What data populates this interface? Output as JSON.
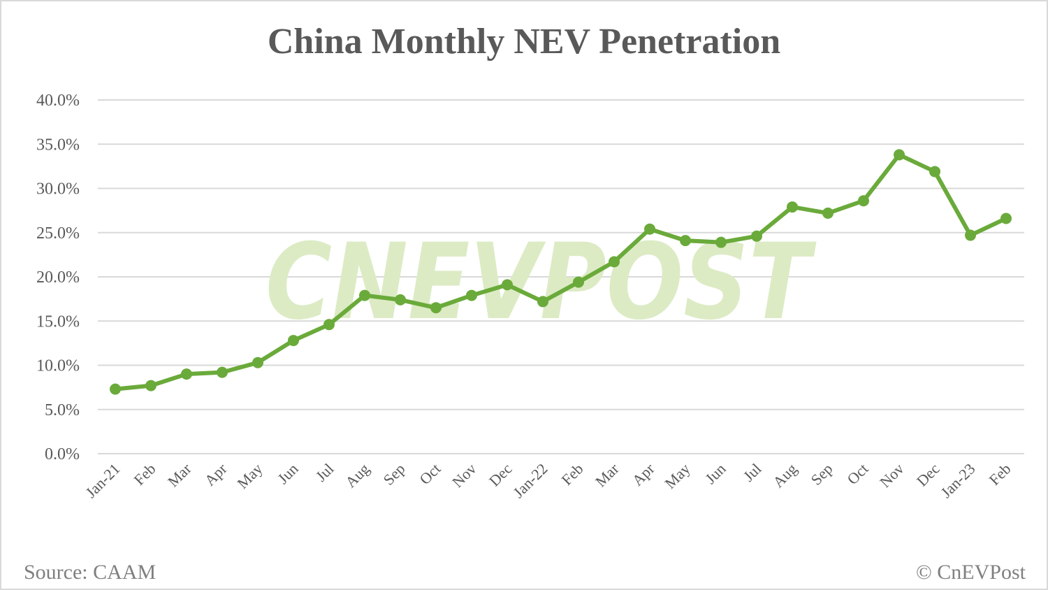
{
  "title": "China Monthly NEV Penetration",
  "footer": {
    "source": "Source: CAAM",
    "credit": "© CnEVPost"
  },
  "watermark": "CNEVPOST",
  "colors": {
    "line": "#6aaa3a",
    "watermark": "#dcebc4",
    "grid": "#d9d9d9",
    "text": "#595959"
  },
  "chart_data": {
    "type": "line",
    "title": "China Monthly NEV Penetration",
    "xlabel": "",
    "ylabel": "",
    "ylim": [
      0,
      40
    ],
    "yticks": [
      "0.0%",
      "5.0%",
      "10.0%",
      "15.0%",
      "20.0%",
      "25.0%",
      "30.0%",
      "35.0%",
      "40.0%"
    ],
    "grid": true,
    "legend": "none",
    "categories": [
      "Jan-21",
      "Feb",
      "Mar",
      "Apr",
      "May",
      "Jun",
      "Jul",
      "Aug",
      "Sep",
      "Oct",
      "Nov",
      "Dec",
      "Jan-22",
      "Feb",
      "Mar",
      "Apr",
      "May",
      "Jun",
      "Jul",
      "Aug",
      "Sep",
      "Oct",
      "Nov",
      "Dec",
      "Jan-23",
      "Feb"
    ],
    "series": [
      {
        "name": "NEV Penetration",
        "values": [
          7.3,
          7.7,
          9.0,
          9.2,
          10.3,
          12.8,
          14.6,
          17.9,
          17.4,
          16.5,
          17.9,
          19.1,
          17.2,
          19.4,
          21.7,
          25.4,
          24.1,
          23.9,
          24.6,
          27.9,
          27.2,
          28.6,
          33.8,
          31.9,
          24.7,
          26.6
        ]
      }
    ]
  }
}
